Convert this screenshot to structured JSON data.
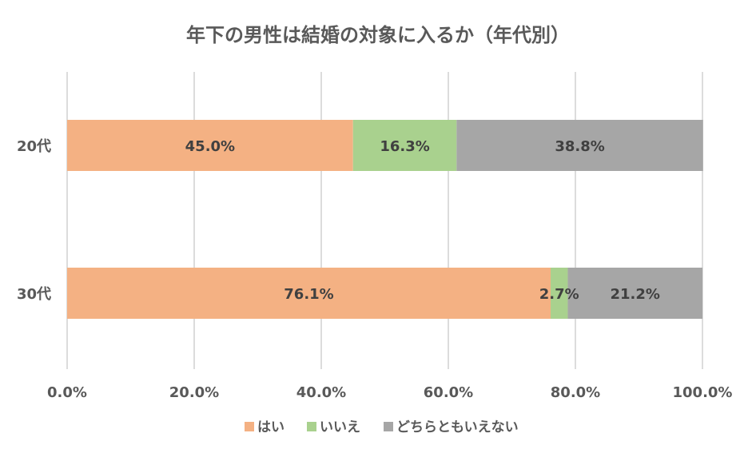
{
  "chart_data": {
    "type": "bar",
    "orientation": "horizontal",
    "stacked": "percent",
    "title": "年下の男性は結婚の対象に入るか（年代別）",
    "categories": [
      "20代",
      "30代"
    ],
    "series": [
      {
        "name": "はい",
        "color": "#f4b183",
        "values": [
          45.0,
          76.1
        ],
        "labels": [
          "45.0%",
          "76.1%"
        ]
      },
      {
        "name": "いいえ",
        "color": "#a9d18e",
        "values": [
          16.3,
          2.7
        ],
        "labels": [
          "16.3%",
          "2.7%"
        ]
      },
      {
        "name": "どちらともいえない",
        "color": "#a6a6a6",
        "values": [
          38.8,
          21.2
        ],
        "labels": [
          "38.8%",
          "21.2%"
        ]
      }
    ],
    "xlim": [
      0,
      100
    ],
    "xticks": [
      0,
      20,
      40,
      60,
      80,
      100
    ],
    "xtick_labels": [
      "0.0%",
      "20.0%",
      "40.0%",
      "60.0%",
      "80.0%",
      "100.0%"
    ],
    "grid": "vertical",
    "legend": "bottom"
  }
}
